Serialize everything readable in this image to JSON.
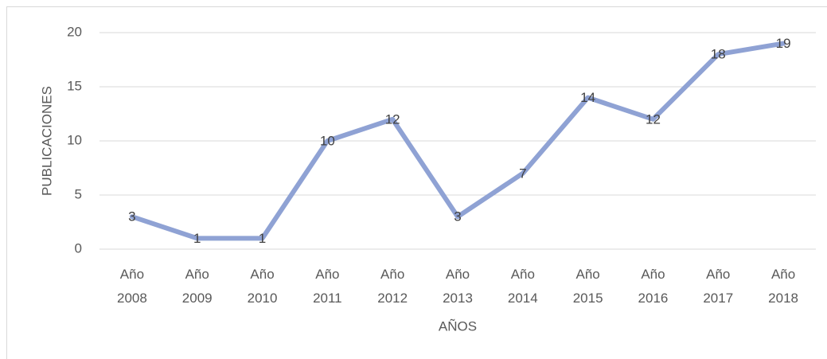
{
  "chart_data": {
    "type": "line",
    "categories": [
      "Año 2008",
      "Año 2009",
      "Año 2010",
      "Año 2011",
      "Año 2012",
      "Año 2013",
      "Año 2014",
      "Año 2015",
      "Año 2016",
      "Año 2017",
      "Año 2018"
    ],
    "series": [
      {
        "name": "PUBLICACIONES",
        "color": "#8fa2d4",
        "values": [
          3,
          1,
          1,
          10,
          12,
          3,
          7,
          14,
          12,
          18,
          19
        ]
      }
    ],
    "xlabel": "AÑOS",
    "ylabel": "PUBLICACIONES",
    "ylim": [
      0,
      20
    ],
    "yticks": [
      0,
      5,
      10,
      15,
      20
    ],
    "grid": true
  }
}
